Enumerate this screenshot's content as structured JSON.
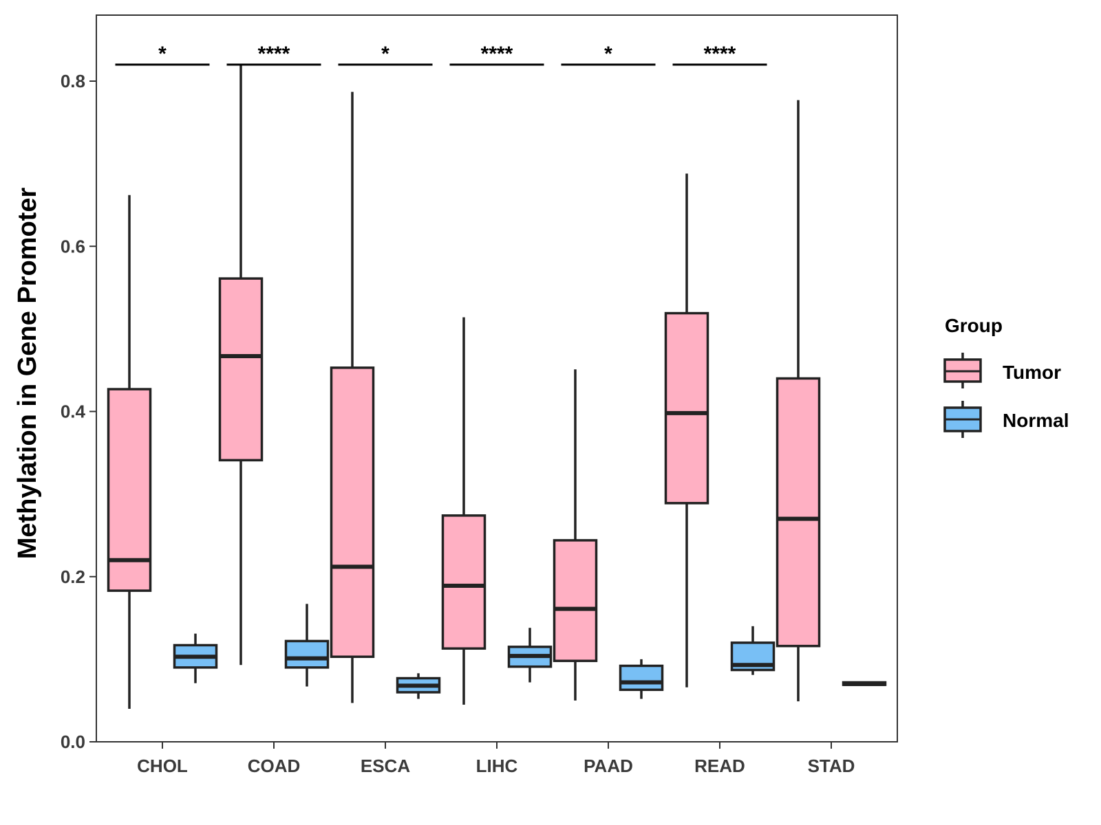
{
  "chart_data": {
    "type": "boxplot",
    "title": "",
    "xlabel": "",
    "ylabel": "Methylation in Gene Promoter",
    "ylim": [
      0.0,
      0.88
    ],
    "yticks": [
      0.0,
      0.2,
      0.4,
      0.6,
      0.8
    ],
    "ytick_labels": [
      "0.0",
      "0.2",
      "0.4",
      "0.6",
      "0.8"
    ],
    "categories": [
      "CHOL",
      "COAD",
      "ESCA",
      "LIHC",
      "PAAD",
      "READ",
      "STAD"
    ],
    "legend": {
      "title": "Group",
      "position": "right",
      "entries": [
        "Tumor",
        "Normal"
      ]
    },
    "colors": {
      "Tumor": "#FFB0C3",
      "Normal": "#78BFF5",
      "outline": "#222222"
    },
    "series": [
      {
        "name": "Tumor",
        "boxes": [
          {
            "min": 0.04,
            "q1": 0.183,
            "median": 0.22,
            "q3": 0.427,
            "max": 0.662
          },
          {
            "min": 0.093,
            "q1": 0.341,
            "median": 0.467,
            "q3": 0.561,
            "max": 0.82
          },
          {
            "min": 0.047,
            "q1": 0.103,
            "median": 0.212,
            "q3": 0.453,
            "max": 0.787
          },
          {
            "min": 0.045,
            "q1": 0.113,
            "median": 0.189,
            "q3": 0.274,
            "max": 0.514
          },
          {
            "min": 0.05,
            "q1": 0.098,
            "median": 0.161,
            "q3": 0.244,
            "max": 0.451
          },
          {
            "min": 0.066,
            "q1": 0.289,
            "median": 0.398,
            "q3": 0.519,
            "max": 0.688
          },
          {
            "min": 0.049,
            "q1": 0.116,
            "median": 0.27,
            "q3": 0.44,
            "max": 0.777
          }
        ]
      },
      {
        "name": "Normal",
        "boxes": [
          {
            "min": 0.071,
            "q1": 0.09,
            "median": 0.103,
            "q3": 0.117,
            "max": 0.131
          },
          {
            "min": 0.067,
            "q1": 0.09,
            "median": 0.101,
            "q3": 0.122,
            "max": 0.167
          },
          {
            "min": 0.052,
            "q1": 0.06,
            "median": 0.068,
            "q3": 0.077,
            "max": 0.083
          },
          {
            "min": 0.072,
            "q1": 0.091,
            "median": 0.104,
            "q3": 0.115,
            "max": 0.138
          },
          {
            "min": 0.052,
            "q1": 0.063,
            "median": 0.072,
            "q3": 0.092,
            "max": 0.1
          },
          {
            "min": 0.081,
            "q1": 0.087,
            "median": 0.093,
            "q3": 0.12,
            "max": 0.14
          },
          {
            "min": 0.069,
            "q1": 0.069,
            "median": 0.07,
            "q3": 0.072,
            "max": 0.073
          }
        ]
      }
    ],
    "significance": [
      {
        "category": "CHOL",
        "label": "*",
        "y": 0.82
      },
      {
        "category": "COAD",
        "label": "****",
        "y": 0.82
      },
      {
        "category": "ESCA",
        "label": "*",
        "y": 0.82
      },
      {
        "category": "LIHC",
        "label": "****",
        "y": 0.82
      },
      {
        "category": "PAAD",
        "label": "*",
        "y": 0.82
      },
      {
        "category": "READ",
        "label": "****",
        "y": 0.82
      }
    ]
  }
}
